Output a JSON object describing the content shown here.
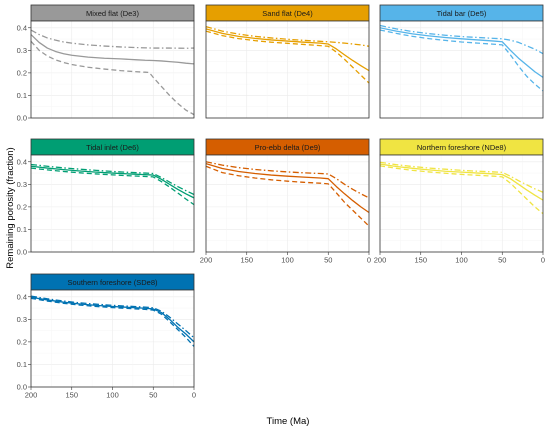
{
  "chart_data": {
    "type": "line",
    "xlabel": "Time (Ma)",
    "ylabel": "Remaining porosity (fraction)",
    "xlim": [
      200,
      0
    ],
    "ylim": [
      0,
      0.43
    ],
    "x_reversed": true,
    "x_ticks": [
      200,
      150,
      100,
      50,
      0
    ],
    "y_ticks": [
      0.0,
      0.1,
      0.2,
      0.3,
      0.4
    ],
    "x_tick_labels": [
      "200",
      "150",
      "100",
      "50",
      "0"
    ],
    "y_tick_labels": [
      "0.0",
      "0.1",
      "0.2",
      "0.3",
      "0.4"
    ],
    "grid": true,
    "legend": "none",
    "line_styles": [
      "solid",
      "dashed",
      "dashdot"
    ],
    "panels": [
      {
        "title": "Mixed flat (De3)",
        "strip_color": "#999999",
        "line_color": "#999999",
        "show_x_ticks": false,
        "series": [
          {
            "style": "solid",
            "x": [
              200,
              190,
              180,
              170,
              160,
              150,
              130,
              110,
              90,
              70,
              60,
              50,
              40,
              30,
              20,
              10,
              0
            ],
            "y": [
              0.37,
              0.335,
              0.31,
              0.295,
              0.285,
              0.278,
              0.27,
              0.265,
              0.262,
              0.258,
              0.256,
              0.255,
              0.253,
              0.25,
              0.247,
              0.243,
              0.24
            ]
          },
          {
            "style": "dashed",
            "x": [
              200,
              190,
              180,
              170,
              160,
              150,
              130,
              110,
              90,
              70,
              60,
              55,
              50,
              40,
              30,
              20,
              10,
              0
            ],
            "y": [
              0.34,
              0.3,
              0.275,
              0.258,
              0.246,
              0.237,
              0.225,
              0.217,
              0.21,
              0.205,
              0.203,
              0.202,
              0.18,
              0.14,
              0.1,
              0.065,
              0.035,
              0.015
            ]
          },
          {
            "style": "dashdot",
            "x": [
              200,
              190,
              180,
              170,
              160,
              150,
              130,
              110,
              90,
              70,
              50,
              30,
              10,
              0
            ],
            "y": [
              0.39,
              0.37,
              0.355,
              0.345,
              0.337,
              0.332,
              0.324,
              0.319,
              0.315,
              0.312,
              0.31,
              0.31,
              0.309,
              0.31
            ]
          }
        ]
      },
      {
        "title": "Sand flat (De4)",
        "strip_color": "#E69F00",
        "line_color": "#E69F00",
        "show_x_ticks": false,
        "series": [
          {
            "style": "solid",
            "x": [
              200,
              180,
              160,
              140,
              120,
              100,
              80,
              60,
              50,
              40,
              30,
              20,
              10,
              0
            ],
            "y": [
              0.395,
              0.375,
              0.362,
              0.353,
              0.346,
              0.341,
              0.336,
              0.332,
              0.328,
              0.306,
              0.28,
              0.255,
              0.232,
              0.21
            ]
          },
          {
            "style": "dashed",
            "x": [
              200,
              180,
              160,
              140,
              120,
              100,
              80,
              60,
              50,
              40,
              30,
              20,
              10,
              0
            ],
            "y": [
              0.385,
              0.365,
              0.352,
              0.343,
              0.336,
              0.331,
              0.326,
              0.321,
              0.318,
              0.292,
              0.26,
              0.225,
              0.19,
              0.155
            ]
          },
          {
            "style": "dashdot",
            "x": [
              200,
              180,
              160,
              140,
              120,
              100,
              80,
              60,
              50,
              40,
              30,
              20,
              10,
              0
            ],
            "y": [
              0.405,
              0.385,
              0.372,
              0.362,
              0.355,
              0.349,
              0.344,
              0.34,
              0.338,
              0.335,
              0.332,
              0.328,
              0.324,
              0.318
            ]
          }
        ]
      },
      {
        "title": "Tidal bar (De5)",
        "strip_color": "#56B4E9",
        "line_color": "#56B4E9",
        "show_x_ticks": false,
        "series": [
          {
            "style": "solid",
            "x": [
              200,
              180,
              160,
              140,
              120,
              100,
              80,
              60,
              50,
              40,
              30,
              20,
              10,
              0
            ],
            "y": [
              0.4,
              0.385,
              0.373,
              0.364,
              0.357,
              0.351,
              0.346,
              0.341,
              0.338,
              0.3,
              0.265,
              0.235,
              0.205,
              0.18
            ]
          },
          {
            "style": "dashed",
            "x": [
              200,
              180,
              160,
              140,
              120,
              100,
              80,
              60,
              50,
              40,
              30,
              20,
              10,
              0
            ],
            "y": [
              0.39,
              0.375,
              0.362,
              0.352,
              0.344,
              0.337,
              0.332,
              0.327,
              0.324,
              0.28,
              0.23,
              0.185,
              0.15,
              0.12
            ]
          },
          {
            "style": "dashdot",
            "x": [
              200,
              180,
              160,
              140,
              120,
              100,
              80,
              60,
              50,
              40,
              30,
              20,
              10,
              0
            ],
            "y": [
              0.41,
              0.395,
              0.383,
              0.374,
              0.367,
              0.361,
              0.357,
              0.353,
              0.351,
              0.345,
              0.335,
              0.32,
              0.305,
              0.285
            ]
          }
        ]
      },
      {
        "title": "Tidal inlet (De6)",
        "strip_color": "#009E73",
        "line_color": "#009E73",
        "show_x_ticks": false,
        "series": [
          {
            "style": "solid",
            "x": [
              200,
              180,
              160,
              140,
              120,
              100,
              80,
              60,
              50,
              40,
              30,
              20,
              10,
              0
            ],
            "y": [
              0.38,
              0.372,
              0.365,
              0.359,
              0.354,
              0.35,
              0.346,
              0.343,
              0.341,
              0.322,
              0.3,
              0.278,
              0.258,
              0.24
            ]
          },
          {
            "style": "dashed",
            "x": [
              200,
              180,
              160,
              140,
              120,
              100,
              80,
              60,
              50,
              40,
              30,
              20,
              10,
              0
            ],
            "y": [
              0.372,
              0.364,
              0.357,
              0.351,
              0.346,
              0.342,
              0.338,
              0.335,
              0.333,
              0.312,
              0.288,
              0.262,
              0.235,
              0.21
            ]
          },
          {
            "style": "dashdot",
            "x": [
              200,
              180,
              160,
              140,
              120,
              100,
              80,
              60,
              50,
              40,
              30,
              20,
              10,
              0
            ],
            "y": [
              0.388,
              0.38,
              0.373,
              0.367,
              0.362,
              0.357,
              0.353,
              0.35,
              0.348,
              0.33,
              0.31,
              0.29,
              0.272,
              0.255
            ]
          }
        ]
      },
      {
        "title": "Pro-ebb delta (De9)",
        "strip_color": "#D55E00",
        "line_color": "#D55E00",
        "show_x_ticks": true,
        "series": [
          {
            "style": "solid",
            "x": [
              200,
              180,
              160,
              140,
              120,
              100,
              80,
              60,
              50,
              40,
              30,
              20,
              10,
              0
            ],
            "y": [
              0.392,
              0.37,
              0.357,
              0.348,
              0.341,
              0.336,
              0.332,
              0.328,
              0.325,
              0.29,
              0.258,
              0.228,
              0.2,
              0.175
            ]
          },
          {
            "style": "dashed",
            "x": [
              200,
              180,
              160,
              140,
              120,
              100,
              80,
              60,
              50,
              40,
              30,
              20,
              10,
              0
            ],
            "y": [
              0.38,
              0.352,
              0.338,
              0.328,
              0.32,
              0.314,
              0.309,
              0.305,
              0.302,
              0.262,
              0.22,
              0.185,
              0.15,
              0.115
            ]
          },
          {
            "style": "dashdot",
            "x": [
              200,
              180,
              160,
              140,
              120,
              100,
              80,
              60,
              50,
              40,
              30,
              20,
              10,
              0
            ],
            "y": [
              0.4,
              0.385,
              0.374,
              0.366,
              0.36,
              0.355,
              0.351,
              0.348,
              0.346,
              0.325,
              0.3,
              0.278,
              0.258,
              0.24
            ]
          }
        ]
      },
      {
        "title": "Northern foreshore (NDe8)",
        "strip_color": "#F0E442",
        "line_color": "#F0E442",
        "show_x_ticks": true,
        "series": [
          {
            "style": "solid",
            "x": [
              200,
              180,
              160,
              140,
              120,
              100,
              80,
              60,
              50,
              40,
              30,
              20,
              10,
              0
            ],
            "y": [
              0.39,
              0.379,
              0.371,
              0.364,
              0.358,
              0.354,
              0.35,
              0.346,
              0.343,
              0.325,
              0.3,
              0.275,
              0.252,
              0.23
            ]
          },
          {
            "style": "dashed",
            "x": [
              200,
              180,
              160,
              140,
              120,
              100,
              80,
              60,
              50,
              40,
              30,
              20,
              10,
              0
            ],
            "y": [
              0.382,
              0.371,
              0.362,
              0.355,
              0.349,
              0.344,
              0.34,
              0.336,
              0.333,
              0.305,
              0.27,
              0.235,
              0.2,
              0.17
            ]
          },
          {
            "style": "dashdot",
            "x": [
              200,
              180,
              160,
              140,
              120,
              100,
              80,
              60,
              50,
              40,
              30,
              20,
              10,
              0
            ],
            "y": [
              0.398,
              0.387,
              0.379,
              0.372,
              0.367,
              0.362,
              0.358,
              0.355,
              0.353,
              0.336,
              0.316,
              0.298,
              0.28,
              0.265
            ]
          }
        ]
      },
      {
        "title": "Southern foreshore (SDe8)",
        "strip_color": "#0072B2",
        "line_color": "#0072B2",
        "show_x_ticks": true,
        "series": [
          {
            "style": "solid",
            "x": [
              200,
              180,
              160,
              140,
              120,
              100,
              80,
              60,
              50,
              40,
              30,
              20,
              10,
              0
            ],
            "y": [
              0.398,
              0.386,
              0.376,
              0.368,
              0.362,
              0.357,
              0.353,
              0.349,
              0.346,
              0.33,
              0.3,
              0.265,
              0.235,
              0.2
            ]
          },
          {
            "style": "dashed",
            "x": [
              200,
              180,
              160,
              140,
              120,
              100,
              80,
              60,
              50,
              40,
              30,
              20,
              10,
              0
            ],
            "y": [
              0.393,
              0.381,
              0.371,
              0.363,
              0.357,
              0.352,
              0.348,
              0.344,
              0.341,
              0.323,
              0.29,
              0.255,
              0.22,
              0.18
            ]
          },
          {
            "style": "dashdot",
            "x": [
              200,
              180,
              160,
              140,
              120,
              100,
              80,
              60,
              50,
              40,
              30,
              20,
              10,
              0
            ],
            "y": [
              0.403,
              0.391,
              0.381,
              0.373,
              0.367,
              0.362,
              0.358,
              0.354,
              0.351,
              0.336,
              0.31,
              0.28,
              0.25,
              0.218
            ]
          }
        ]
      }
    ]
  }
}
